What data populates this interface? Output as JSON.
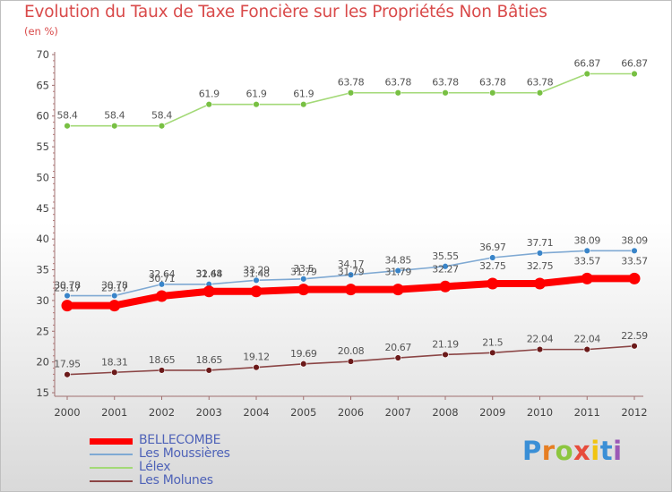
{
  "title": "Evolution du Taux de Taxe Foncière sur les Propriétés Non Bâties",
  "unit_label": "(en %)",
  "logo": {
    "text": "Proxiti",
    "letters": [
      "P",
      "r",
      "o",
      "x",
      "i",
      "t",
      "i"
    ],
    "colors": [
      "#3a8fd6",
      "#e67e22",
      "#8cc63f",
      "#e74c3c",
      "#f1c40f",
      "#3a8fd6",
      "#9b59b6"
    ]
  },
  "chart_data": {
    "type": "line",
    "title": "Evolution du Taux de Taxe Foncière sur les Propriétés Non Bâties",
    "ylabel": "(en %)",
    "xlabel": "",
    "ylim": [
      15,
      70
    ],
    "yticks": [
      "15",
      "20",
      "25",
      "30",
      "35",
      "40",
      "45",
      "50",
      "55",
      "60",
      "65",
      "70"
    ],
    "categories": [
      "2000",
      "2001",
      "2002",
      "2003",
      "2004",
      "2005",
      "2006",
      "2007",
      "2008",
      "2009",
      "2010",
      "2011",
      "2012"
    ],
    "series": [
      {
        "name": "BELLECOMBE",
        "color": "#ff0000",
        "bold": true,
        "values": [
          29.17,
          29.17,
          30.71,
          31.48,
          31.48,
          31.79,
          31.79,
          31.79,
          32.27,
          32.75,
          32.75,
          33.57,
          33.57
        ],
        "labels": [
          "29.17",
          "29.17",
          "30.71",
          "31.48",
          "31.48",
          "31.79",
          "31.79",
          "31.79",
          "32.27",
          "32.75",
          "32.75",
          "33.57",
          "33.57"
        ]
      },
      {
        "name": "Les Moussières",
        "color": "#7fa9d3",
        "dot": "#3a85c9",
        "values": [
          30.78,
          30.78,
          32.64,
          32.64,
          33.29,
          33.5,
          34.17,
          34.85,
          35.55,
          36.97,
          37.71,
          38.09,
          38.09
        ],
        "labels": [
          "30.78",
          "30.78",
          "32.64",
          "32.64",
          "33.29",
          "33.5",
          "34.17",
          "34.85",
          "35.55",
          "36.97",
          "37.71",
          "38.09",
          "38.09"
        ]
      },
      {
        "name": "Lélex",
        "color": "#a3d977",
        "dot": "#78c043",
        "values": [
          58.4,
          58.4,
          58.4,
          61.9,
          61.9,
          61.9,
          63.78,
          63.78,
          63.78,
          63.78,
          63.78,
          66.87,
          66.87
        ],
        "labels": [
          "58.4",
          "58.4",
          "58.4",
          "61.9",
          "61.9",
          "61.9",
          "63.78",
          "63.78",
          "63.78",
          "63.78",
          "63.78",
          "66.87",
          "66.87"
        ]
      },
      {
        "name": "Les Molunes",
        "color": "#8b4545",
        "dot": "#6b1a1a",
        "values": [
          17.95,
          18.31,
          18.65,
          18.65,
          19.12,
          19.69,
          20.08,
          20.67,
          21.19,
          21.5,
          22.04,
          22.04,
          22.59
        ],
        "labels": [
          "17.95",
          "18.31",
          "18.65",
          "18.65",
          "19.12",
          "19.69",
          "20.08",
          "20.67",
          "21.19",
          "21.5",
          "22.04",
          "22.04",
          "22.59"
        ]
      }
    ],
    "legend_position": "bottom-left",
    "grid": false
  }
}
